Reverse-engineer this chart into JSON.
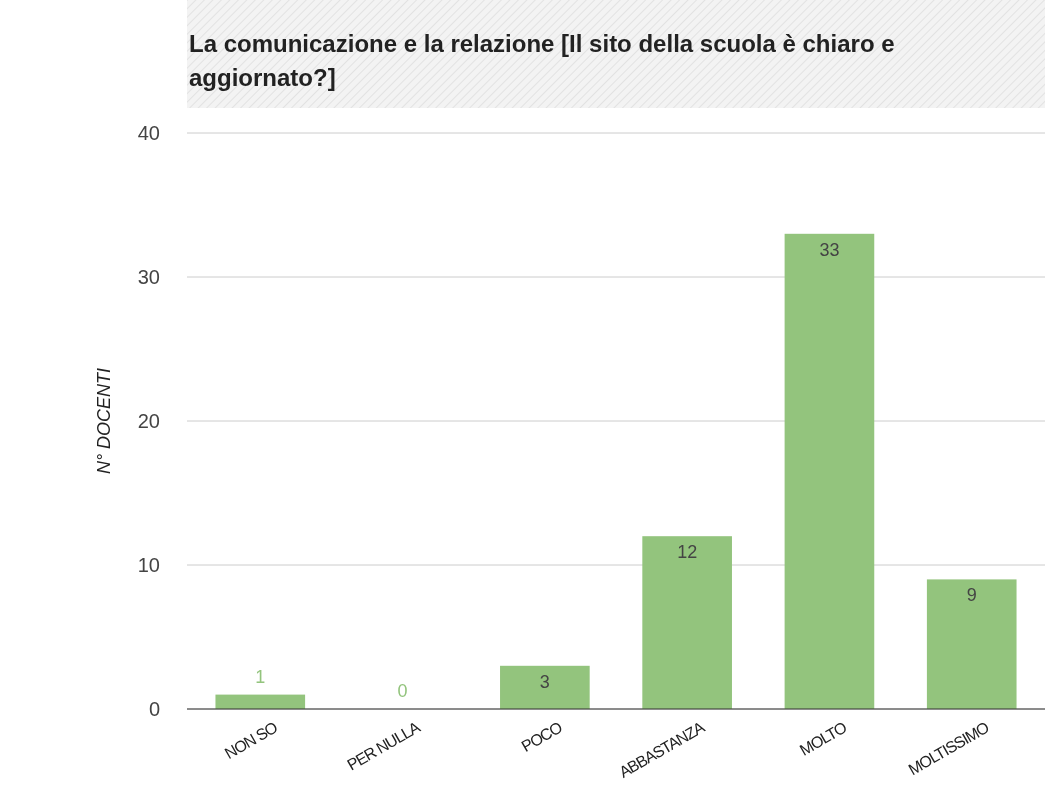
{
  "chart_data": {
    "type": "bar",
    "title": "La comunicazione e la relazione [Il sito della scuola è chiaro e aggiornato?]",
    "ylabel": "N° DOCENTI",
    "categories": [
      "NON SO",
      "PER NULLA",
      "POCO",
      "ABBASTANZA",
      "MOLTO",
      "MOLTISSIMO"
    ],
    "values": [
      1,
      0,
      3,
      12,
      33,
      9
    ],
    "color": "#93c47d",
    "ylim": [
      0,
      40
    ],
    "yticks": [
      0,
      10,
      20,
      30,
      40
    ],
    "grid": "y",
    "data_labels": true
  }
}
